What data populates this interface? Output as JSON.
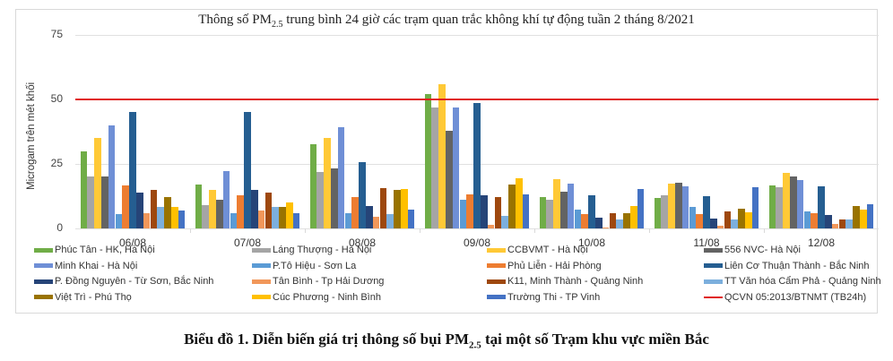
{
  "chart_data": {
    "type": "bar",
    "title": "Thông số PM2.5 trung bình 24 giờ các trạm quan trắc không khí tự động tuần 2 tháng 8/2021",
    "title_parts": {
      "pre": "Thông số PM",
      "sub": "2.5",
      "post": " trung bình 24 giờ các trạm quan trắc không khí tự động tuần 2 tháng 8/2021"
    },
    "xlabel": "",
    "ylabel": "Microgam trên mét khối",
    "ylim": [
      0,
      75
    ],
    "yticks": [
      0,
      25,
      50,
      75
    ],
    "grid": true,
    "legend_position": "bottom",
    "categories": [
      "06/08",
      "07/08",
      "08/08",
      "09/08",
      "10/08",
      "11/08",
      "12/08"
    ],
    "series": [
      {
        "name": "Phúc Tân - HK, Hà Nội",
        "color": "#70ad47",
        "values": [
          30,
          17,
          32.6,
          52,
          12,
          11.7,
          16.6
        ]
      },
      {
        "name": "Láng Thượng - Hà Nội",
        "color": "#a5a5a5",
        "values": [
          20,
          9,
          22,
          47,
          11,
          12.9,
          15.9
        ]
      },
      {
        "name": "CCBVMT - Hà Nội",
        "color": "#ffc936",
        "values": [
          35,
          15,
          35,
          56,
          19.1,
          17.4,
          21.6
        ]
      },
      {
        "name": "556 NVC- Hà Nội",
        "color": "#636363",
        "values": [
          20,
          11,
          23.2,
          38,
          14.2,
          17.7,
          20.2
        ]
      },
      {
        "name": "Minh Khai - Hà Nội",
        "color": "#6f8fd6",
        "values": [
          40,
          22.3,
          39.4,
          47,
          17.3,
          16.3,
          18.6
        ]
      },
      {
        "name": "P.Tô Hiệu - Sơn La",
        "color": "#5b9bd5",
        "values": [
          5.4,
          6,
          5.9,
          11,
          7.2,
          8.4,
          6.5
        ]
      },
      {
        "name": "Phủ Liễn - Hải Phòng",
        "color": "#ed7d31",
        "values": [
          16.6,
          13,
          12.3,
          13.1,
          5.7,
          5.6,
          6
        ]
      },
      {
        "name": "Liên Cơ Thuận Thành - Bắc Ninh",
        "color": "#255e91",
        "values": [
          45.2,
          45,
          25.8,
          48.5,
          12.7,
          12.6,
          16.3
        ]
      },
      {
        "name": "P. Đồng Nguyên - Từ Sơn, Bắc Ninh",
        "color": "#264478",
        "values": [
          14,
          15,
          8.8,
          12.9,
          4,
          3.7,
          5.2
        ]
      },
      {
        "name": "Tân Bình - Tp Hải Dương",
        "color": "#f1975a",
        "values": [
          5.8,
          7,
          4.5,
          1.5,
          0.3,
          1.1,
          1.6
        ]
      },
      {
        "name": "K11, Minh Thành - Quảng Ninh",
        "color": "#9e480e",
        "values": [
          14.8,
          14,
          15.7,
          12.2,
          6,
          6.5,
          3.3
        ]
      },
      {
        "name": "TT Văn hóa Cẩm Phả - Quảng Ninh",
        "color": "#7cafdd",
        "values": [
          8.3,
          8.5,
          5.7,
          5,
          3.5,
          3.3,
          3.6
        ]
      },
      {
        "name": "Việt Trì  - Phú Thọ",
        "color": "#997300",
        "values": [
          12,
          8.3,
          14.8,
          17,
          6,
          7.5,
          8.6
        ]
      },
      {
        "name": "Cúc Phương - Ninh Bình",
        "color": "#ffc000",
        "values": [
          8.5,
          10,
          15.2,
          19.3,
          8.6,
          6.4,
          7.3
        ]
      },
      {
        "name": "Trường Thi - TP Vinh",
        "color": "#4472c4",
        "values": [
          6.8,
          6,
          7.3,
          13.1,
          15.3,
          15.9,
          9.3
        ]
      }
    ],
    "reference_line": {
      "name": "QCVN 05:2013/BTNMT (TB24h)",
      "value": 50,
      "color": "#e0201e"
    }
  },
  "caption": {
    "pre": "Biểu đồ 1. Diễn biến giá trị thông số bụi PM",
    "sub": "2.5",
    "post": " tại một số Trạm khu vực miền Bắc"
  }
}
